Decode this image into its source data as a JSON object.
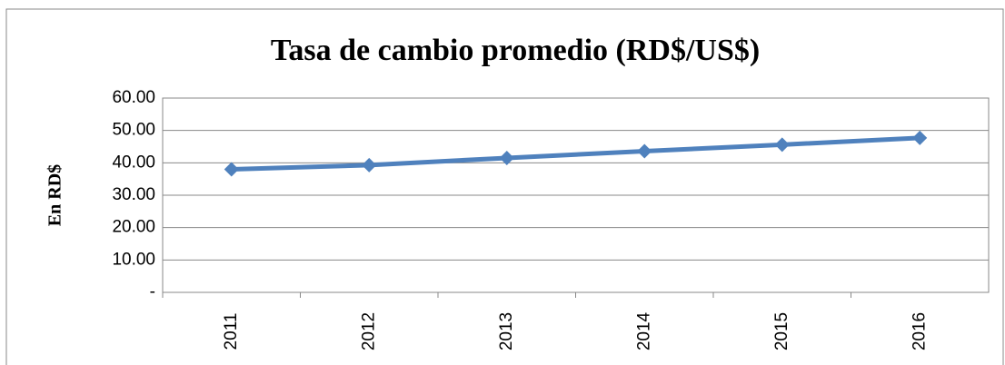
{
  "chart_data": {
    "type": "line",
    "title": "Tasa de cambio promedio (RD$/US$)",
    "y_label": "En RD$",
    "categories": [
      "2011",
      "2012",
      "2013",
      "2014",
      "2015",
      "2016"
    ],
    "series": [
      {
        "color": "#4f81bd",
        "values": [
          38.0,
          39.3,
          41.5,
          43.6,
          45.6,
          47.7
        ]
      }
    ],
    "ylim": [
      0,
      60
    ],
    "yticks": [
      {
        "value": 0,
        "label": "-"
      },
      {
        "value": 10,
        "label": "10.00"
      },
      {
        "value": 20,
        "label": "20.00"
      },
      {
        "value": 30,
        "label": "30.00"
      },
      {
        "value": 40,
        "label": "40.00"
      },
      {
        "value": 50,
        "label": "50.00"
      },
      {
        "value": 60,
        "label": "60.00"
      }
    ],
    "grid": true
  }
}
